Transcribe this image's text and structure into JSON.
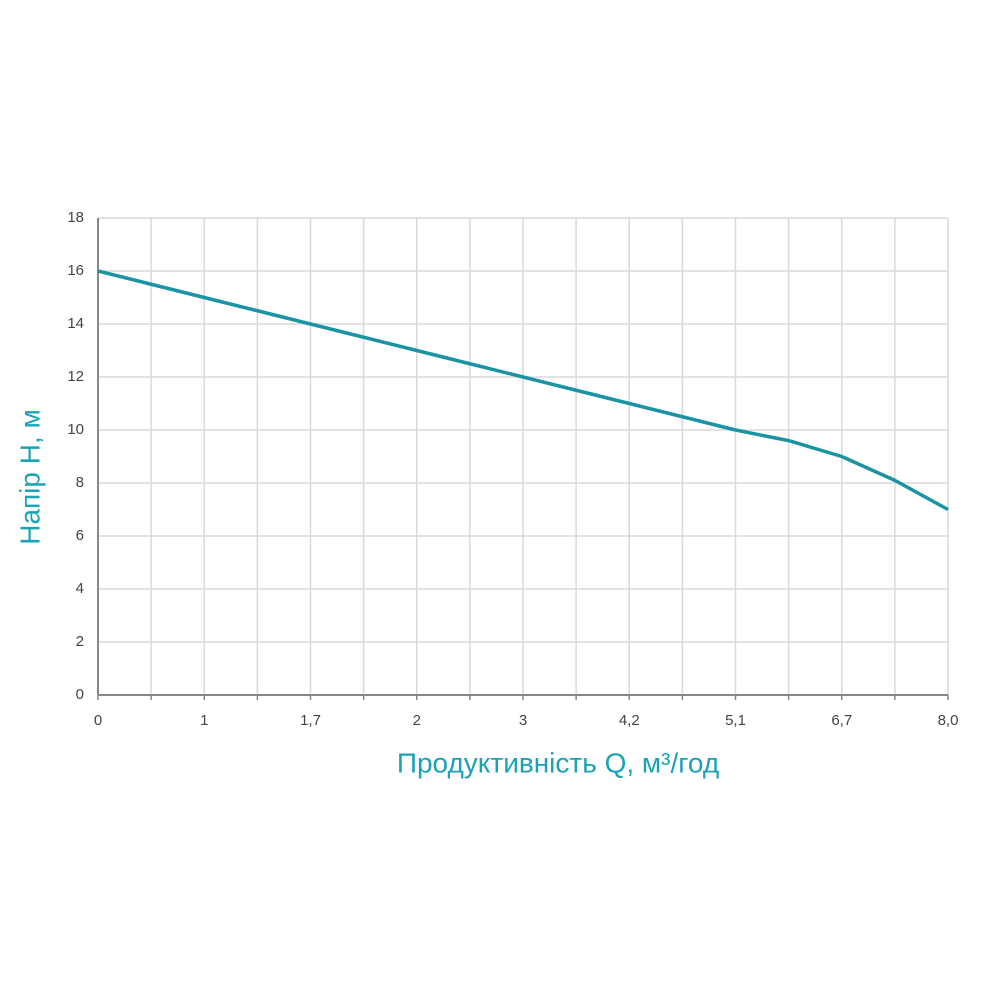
{
  "chart_data": {
    "type": "line",
    "x_label": "Продуктивність Q, м³/год",
    "y_label": "Напір H, м",
    "categories": [
      "0",
      null,
      "1",
      null,
      "1,7",
      null,
      "2",
      null,
      "3",
      null,
      "4,2",
      null,
      "5,1",
      null,
      "6,7",
      null,
      "8,0"
    ],
    "series": [
      {
        "name": "H",
        "color": "#1b93a3",
        "values": [
          16,
          15.5,
          15,
          14.5,
          14,
          13.5,
          13,
          12.5,
          12,
          11.5,
          11,
          10.5,
          10,
          9.6,
          9,
          8.1,
          7
        ]
      }
    ],
    "ylim": [
      0,
      18
    ],
    "yticks": [
      0,
      2,
      4,
      6,
      8,
      10,
      12,
      14,
      16,
      18
    ],
    "grid": true,
    "label_color": "#1aa3b5"
  }
}
